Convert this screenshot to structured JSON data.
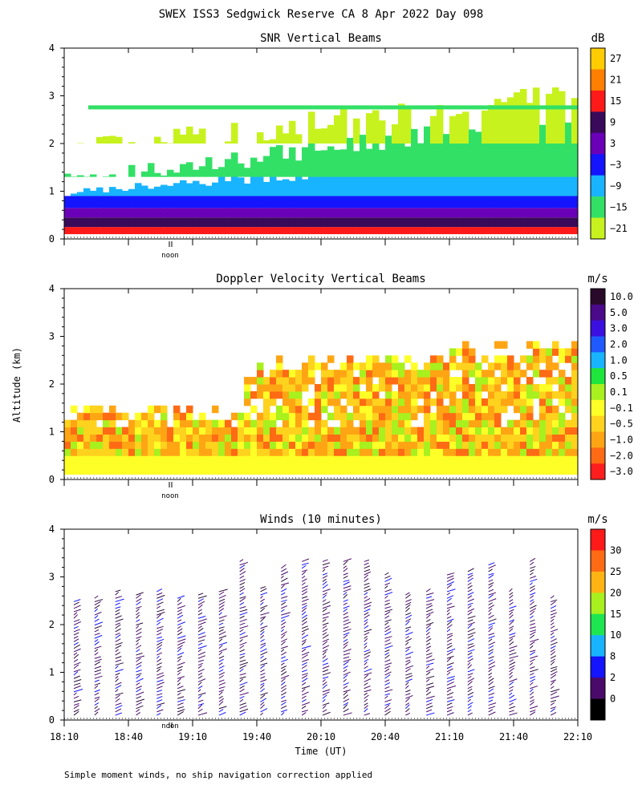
{
  "page": {
    "title": "SWEX ISS3 Sedgwick Reserve CA   8 Apr 2022 Day 098",
    "ylabel": "Altitude (km)",
    "xlabel": "Time (UT)",
    "footnote": "Simple moment winds, no ship navigation correction applied",
    "noon_label": "noon"
  },
  "chart_data": [
    {
      "id": "snr",
      "type": "heatmap",
      "title": "SNR Vertical Beams",
      "colorbar_title": "dB",
      "colorbar_labels": [
        "27",
        "21",
        "15",
        "9",
        "3",
        "−3",
        "−9",
        "−15",
        "−21"
      ],
      "colorbar_colors": [
        "#ffcc00",
        "#ff7f00",
        "#ff1a1a",
        "#3a0a5a",
        "#6a00b8",
        "#1414ff",
        "#18b4ff",
        "#33e066",
        "#c8f21e"
      ],
      "y_ticks": [
        "0",
        "1",
        "2",
        "3",
        "4"
      ],
      "ylim": [
        0,
        4
      ],
      "xlim": [
        "18:10",
        "22:10"
      ],
      "bands": [
        {
          "from": 0.1,
          "to": 0.25,
          "color_index": 2
        },
        {
          "from": 0.25,
          "to": 0.45,
          "color_index": 3
        },
        {
          "from": 0.45,
          "to": 0.65,
          "color_index": 4
        },
        {
          "from": 0.65,
          "to": 0.9,
          "color_index": 5
        },
        {
          "from": 0.9,
          "to": 1.3,
          "color_index": 6
        },
        {
          "from": 1.3,
          "to": 2.0,
          "color_index": 7
        },
        {
          "from": 2.0,
          "to": 2.8,
          "color_index": 8
        }
      ]
    },
    {
      "id": "doppler",
      "type": "heatmap",
      "title": "Doppler Velocity Vertical Beams",
      "colorbar_title": "m/s",
      "colorbar_labels": [
        "10.0",
        "5.0",
        "3.0",
        "2.0",
        "1.0",
        "0.5",
        "0.1",
        "−0.1",
        "−0.5",
        "−1.0",
        "−2.0",
        "−3.0"
      ],
      "colorbar_colors": [
        "#2a0a2a",
        "#4a0a8a",
        "#3a10e0",
        "#1e5aff",
        "#18b4ff",
        "#1ee63c",
        "#a8f01e",
        "#ffff28",
        "#ffd21e",
        "#ffa514",
        "#ff6a14",
        "#ff1e1e"
      ],
      "y_ticks": [
        "0",
        "1",
        "2",
        "3",
        "4"
      ],
      "ylim": [
        0,
        4
      ],
      "xlim": [
        "18:10",
        "22:10"
      ]
    },
    {
      "id": "winds",
      "type": "scatter",
      "title": "Winds (10 minutes)",
      "colorbar_title": "m/s",
      "colorbar_labels": [
        "30",
        "25",
        "20",
        "15",
        "10",
        "8",
        "2",
        "0"
      ],
      "colorbar_colors": [
        "#ff1a1a",
        "#ff6a14",
        "#ffb414",
        "#a8f01e",
        "#1ee650",
        "#18b4ff",
        "#1414ff",
        "#4a0a6a",
        "#000000"
      ],
      "y_ticks": [
        "0",
        "1",
        "2",
        "3",
        "4"
      ],
      "x_ticks": [
        "18:10",
        "18:40",
        "19:10",
        "19:40",
        "20:10",
        "20:40",
        "21:10",
        "21:40",
        "22:10"
      ],
      "ylim": [
        0,
        4
      ],
      "xlim": [
        "18:10",
        "22:10"
      ]
    }
  ]
}
